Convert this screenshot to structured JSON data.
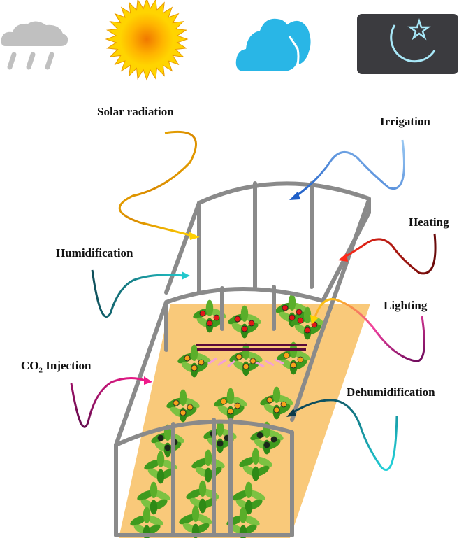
{
  "weather_icons": [
    {
      "name": "rain-cloud-icon",
      "color": "#c0c0c0"
    },
    {
      "name": "sun-icon",
      "color": "#f5a000"
    },
    {
      "name": "cloud-icon",
      "color": "#29b6e6"
    },
    {
      "name": "moon-star-icon",
      "color": "#a8e8f8"
    }
  ],
  "labels": {
    "solar_radiation": "Solar radiation",
    "irrigation": "Irrigation",
    "heating": "Heating",
    "humidification": "Humidification",
    "lighting": "Lighting",
    "co2_prefix": "CO",
    "co2_sub": "2",
    "co2_suffix": " Injection",
    "dehumidification": "Dehumidification"
  },
  "colors": {
    "frame": "#8a8a8a",
    "floor": "#f9c97a",
    "leaf": "#3e9a1e",
    "leaf_light": "#7cc242",
    "fruit_red": "#e01818",
    "fruit_orange": "#f7a21b",
    "lamp": "#5a0a3a",
    "lamp_glow": "#f4a0d8"
  }
}
